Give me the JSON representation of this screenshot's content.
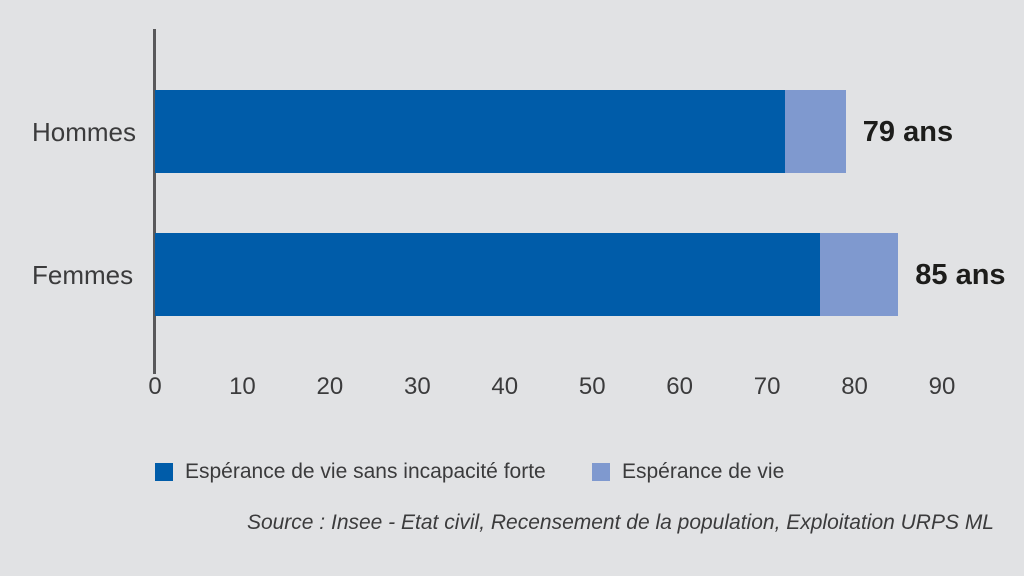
{
  "chart_data": {
    "type": "bar",
    "orientation": "horizontal",
    "title": "",
    "xlabel": "",
    "ylabel": "",
    "xlim": [
      0,
      90
    ],
    "xticks": [
      0,
      10,
      20,
      30,
      40,
      50,
      60,
      70,
      80,
      90
    ],
    "grid": false,
    "categories": [
      "Hommes",
      "Femmes"
    ],
    "series": [
      {
        "name": "Espérance de vie sans incapacité forte",
        "color": "#005ca9",
        "values": [
          72,
          76
        ]
      },
      {
        "name": "Espérance de vie",
        "color": "#7f99cf",
        "values": [
          79,
          85
        ],
        "stacking": "values are totals; rendered segment = total minus first series"
      }
    ],
    "value_labels": [
      "79 ans",
      "85 ans"
    ],
    "legend_position": "bottom",
    "source": "Source : Insee - Etat civil, Recensement de la population, Exploitation URPS ML"
  },
  "colors": {
    "background": "#e1e2e4",
    "axis": "#58585a",
    "text": "#3b3b3c",
    "value_label_text": "#1d1d1b",
    "series_dark_blue": "#005ca9",
    "series_light_blue": "#7f99cf"
  }
}
